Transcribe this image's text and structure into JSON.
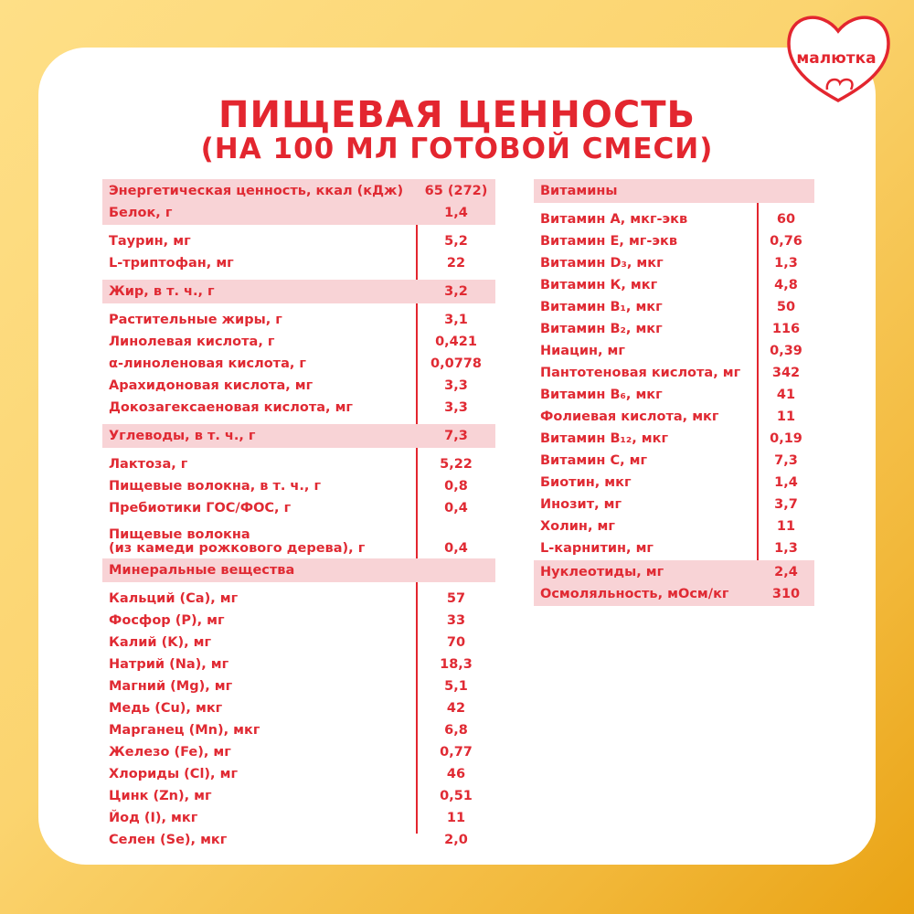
{
  "brand": {
    "logo": "малютка"
  },
  "title": {
    "line1": "ПИЩЕВАЯ ЦЕННОСТЬ",
    "line2": "(НА 100 МЛ ГОТОВОЙ СМЕСИ)"
  },
  "left": [
    {
      "label": "Энергетическая ценность, ккал (кДж)",
      "value": "65 (272)"
    },
    {
      "label": "Белок, г",
      "value": "1,4"
    },
    {
      "label": "Таурин, мг",
      "value": "5,2"
    },
    {
      "label": "L-триптофан, мг",
      "value": "22"
    },
    {
      "label": "Жир, в т. ч., г",
      "value": "3,2"
    },
    {
      "label": "Растительные жиры, г",
      "value": "3,1"
    },
    {
      "label": "Линолевая кислота, г",
      "value": "0,421"
    },
    {
      "label": "α-линоленовая кислота, г",
      "value": "0,0778"
    },
    {
      "label": "Арахидоновая кислота, мг",
      "value": "3,3"
    },
    {
      "label": "Докозагексаеновая кислота, мг",
      "value": "3,3"
    },
    {
      "label": "Углеводы, в т. ч., г",
      "value": "7,3"
    },
    {
      "label": "Лактоза, г",
      "value": "5,22"
    },
    {
      "label": "Пищевые волокна, в т. ч., г",
      "value": "0,8"
    },
    {
      "label": "Пребиотики ГОС/ФОС, г",
      "value": "0,4"
    },
    {
      "label": "Пищевые волокна",
      "label2": "(из камеди рожкового дерева), г",
      "value": "0,4"
    },
    {
      "label": "Минеральные вещества",
      "value": ""
    },
    {
      "label": "Кальций (Ca), мг",
      "value": "57"
    },
    {
      "label": "Фосфор (P), мг",
      "value": "33"
    },
    {
      "label": "Калий (K), мг",
      "value": "70"
    },
    {
      "label": "Натрий (Na), мг",
      "value": "18,3"
    },
    {
      "label": "Магний (Mg), мг",
      "value": "5,1"
    },
    {
      "label": "Медь (Cu), мкг",
      "value": "42"
    },
    {
      "label": "Марганец (Mn), мкг",
      "value": "6,8"
    },
    {
      "label": "Железо (Fe), мг",
      "value": "0,77"
    },
    {
      "label": "Хлориды (Cl), мг",
      "value": "46"
    },
    {
      "label": "Цинк (Zn), мг",
      "value": "0,51"
    },
    {
      "label": "Йод (I), мкг",
      "value": "11"
    },
    {
      "label": "Селен (Se), мкг",
      "value": "2,0"
    }
  ],
  "right": [
    {
      "label": "Витамины",
      "value": ""
    },
    {
      "label": "Витамин А, мкг-экв",
      "value": "60"
    },
    {
      "label": "Витамин Е, мг-экв",
      "value": "0,76"
    },
    {
      "label": "Витамин D₃, мкг",
      "value": "1,3"
    },
    {
      "label": "Витамин К, мкг",
      "value": "4,8"
    },
    {
      "label": "Витамин В₁, мкг",
      "value": "50"
    },
    {
      "label": "Витамин В₂, мкг",
      "value": "116"
    },
    {
      "label": "Ниацин, мг",
      "value": "0,39"
    },
    {
      "label": "Пантотеновая кислота, мг",
      "value": "342"
    },
    {
      "label": "Витамин В₆, мкг",
      "value": "41"
    },
    {
      "label": "Фолиевая кислота, мкг",
      "value": "11"
    },
    {
      "label": "Витамин В₁₂, мкг",
      "value": "0,19"
    },
    {
      "label": "Витамин С, мг",
      "value": "7,3"
    },
    {
      "label": "Биотин, мкг",
      "value": "1,4"
    },
    {
      "label": "Инозит, мг",
      "value": "3,7"
    },
    {
      "label": "Холин, мг",
      "value": "11"
    },
    {
      "label": "L-карнитин, мг",
      "value": "1,3"
    },
    {
      "label": "Нуклеотиды, мг",
      "value": "2,4"
    },
    {
      "label": "Осмоляльность, мОсм/кг",
      "value": "310"
    }
  ],
  "colors": {
    "accent": "#e3262f",
    "highlight": "#f8d3d6",
    "card": "#ffffff",
    "bg_light": "#fedf87",
    "bg_dark": "#e9a314"
  }
}
